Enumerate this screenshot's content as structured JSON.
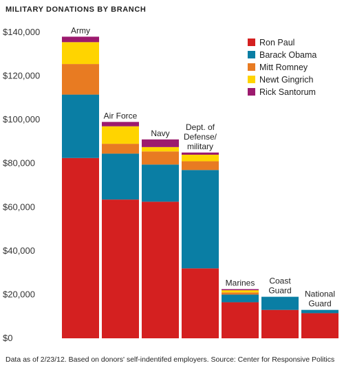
{
  "title": "MILITARY DONATIONS BY BRANCH",
  "footnote": "Data as of 2/23/12. Based on donors' self-indentifed employers. Source: Center for Responsive Politics",
  "chart_data": {
    "type": "bar",
    "stacked": true,
    "title": "MILITARY DONATIONS BY BRANCH",
    "xlabel": "",
    "ylabel": "",
    "ylim": [
      0,
      140000
    ],
    "yticks": [
      0,
      20000,
      40000,
      60000,
      80000,
      100000,
      120000,
      140000
    ],
    "ytick_labels": [
      "$0",
      "$20,000",
      "$40,000",
      "$60,000",
      "$80,000",
      "$100,000",
      "$120,000",
      "$140,000"
    ],
    "grid": false,
    "legend_position": "top-right",
    "categories": [
      [
        "Army"
      ],
      [
        "Air Force"
      ],
      [
        "Navy"
      ],
      [
        "Dept. of",
        "Defense/",
        "military"
      ],
      [
        "Marines"
      ],
      [
        "Coast",
        "Guard"
      ],
      [
        "National",
        "Guard"
      ]
    ],
    "series": [
      {
        "name": "Ron Paul",
        "color": "#d42020",
        "values": [
          82500,
          63500,
          62500,
          32000,
          16500,
          13000,
          11500
        ]
      },
      {
        "name": "Barack Obama",
        "color": "#0a7ea4",
        "values": [
          29000,
          21000,
          17000,
          45000,
          3500,
          6000,
          1500
        ]
      },
      {
        "name": "Mitt Romney",
        "color": "#e87b22",
        "values": [
          14000,
          4500,
          6000,
          4000,
          1000,
          0,
          0
        ]
      },
      {
        "name": "Newt Gingrich",
        "color": "#ffd400",
        "values": [
          10000,
          8000,
          2000,
          3000,
          1000,
          0,
          0
        ]
      },
      {
        "name": "Rick Santorum",
        "color": "#9c1a6e",
        "values": [
          2500,
          2000,
          3500,
          1000,
          500,
          0,
          0
        ]
      }
    ]
  }
}
